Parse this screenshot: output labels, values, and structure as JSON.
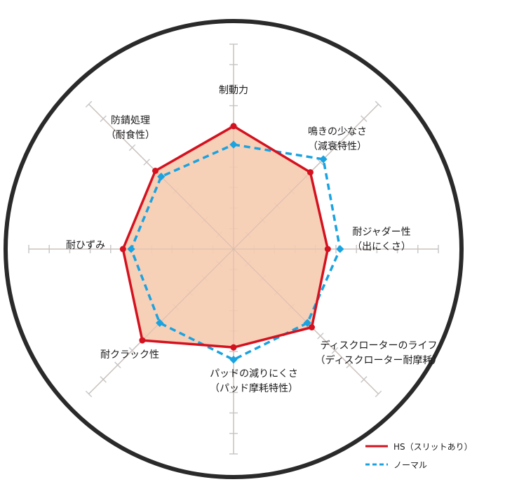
{
  "chart_data": {
    "type": "radar",
    "title": "",
    "scale": {
      "min": 0,
      "max": 10,
      "ticks": 10
    },
    "axes": [
      {
        "id": "braking",
        "lines": [
          "制動力"
        ]
      },
      {
        "id": "noise",
        "lines": [
          "鳴きの少なさ",
          "（減衰特性）"
        ]
      },
      {
        "id": "judder",
        "lines": [
          "耐ジャダー性",
          "（出にくさ）"
        ]
      },
      {
        "id": "disc-life",
        "lines": [
          "ディスクローターのライフ",
          "（ディスクローター耐摩耗）"
        ]
      },
      {
        "id": "pad-wear",
        "lines": [
          "パッドの減りにくさ",
          "（パッド摩耗特性）"
        ]
      },
      {
        "id": "crack",
        "lines": [
          "耐クラック性"
        ]
      },
      {
        "id": "distortion",
        "lines": [
          "耐ひずみ"
        ]
      },
      {
        "id": "rust",
        "lines": [
          "防錆処理",
          "（耐食性）"
        ]
      }
    ],
    "series": [
      {
        "name": "HS（スリットあり）",
        "style": "solid",
        "color": "#d4121f",
        "fill": "#f6cbb0",
        "values": [
          6.0,
          5.3,
          4.6,
          5.4,
          4.8,
          6.3,
          5.4,
          5.4
        ]
      },
      {
        "name": "ノーマル",
        "style": "dashed",
        "color": "#1aa3e0",
        "fill": "none",
        "values": [
          5.1,
          6.2,
          5.2,
          5.1,
          5.4,
          5.1,
          5.0,
          5.0
        ]
      }
    ],
    "legend": {
      "placement": "bottom-right"
    },
    "grid": true
  }
}
